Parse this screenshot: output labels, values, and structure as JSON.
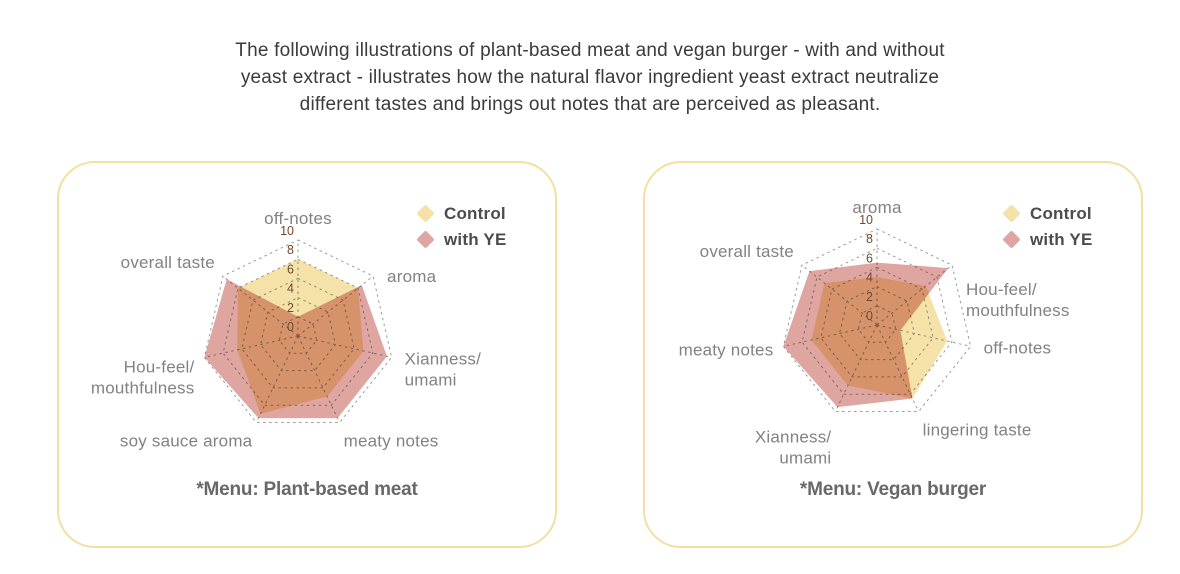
{
  "header": {
    "lines": [
      "The following illustrations of plant-based meat and vegan burger - with and without",
      "yeast extract - illustrates how the natural flavor ingredient yeast extract neutralize",
      "different tastes and brings out notes that are perceived as pleasant."
    ]
  },
  "colors": {
    "control": "#f5e2a9",
    "with_ye": "#dfa6a1",
    "card_border": "#f4dfa1",
    "grid": "#9b9b9b",
    "tick_text": "#6f4a2e",
    "axis_label_text": "#828282",
    "legend_text": "#4c4c4c",
    "caption_text": "#686868",
    "header_text": "#3b3b3b"
  },
  "chart_data": [
    {
      "type": "radar",
      "title": "*Menu: Plant-based meat",
      "rmax": 10,
      "rticks": [
        0,
        2,
        4,
        6,
        8,
        10
      ],
      "grid": "dashed",
      "legend_position": "top-right",
      "axes": [
        [
          "off-notes"
        ],
        [
          "aroma"
        ],
        [
          "Xianness/",
          "umami"
        ],
        [
          "meaty notes"
        ],
        [
          "soy sauce aroma"
        ],
        [
          "Hou-feel/",
          "mouthfulness"
        ],
        [
          "overall taste"
        ]
      ],
      "series": [
        {
          "name": "Control",
          "values": [
            8,
            8,
            7,
            7,
            9,
            6.5,
            8
          ]
        },
        {
          "name": "with YE",
          "values": [
            2,
            8.5,
            9.5,
            9.5,
            9.5,
            10,
            9.5
          ]
        }
      ]
    },
    {
      "type": "radar",
      "title": "*Menu: Vegan burger",
      "rmax": 10,
      "rticks": [
        0,
        2,
        4,
        6,
        8,
        10
      ],
      "grid": "dashed",
      "legend_position": "top-right",
      "axes": [
        [
          "aroma"
        ],
        [
          "Hou-feel/",
          "mouthfulness"
        ],
        [
          "off-notes"
        ],
        [
          "lingering taste"
        ],
        [
          "Xianness/",
          "umami"
        ],
        [
          "meaty notes"
        ],
        [
          "overall taste"
        ]
      ],
      "series": [
        {
          "name": "Control",
          "values": [
            5,
            6.5,
            7.5,
            8.5,
            7,
            7,
            7
          ]
        },
        {
          "name": "with YE",
          "values": [
            6.5,
            9.5,
            2.5,
            8.5,
            9.5,
            10,
            9
          ]
        }
      ]
    }
  ]
}
